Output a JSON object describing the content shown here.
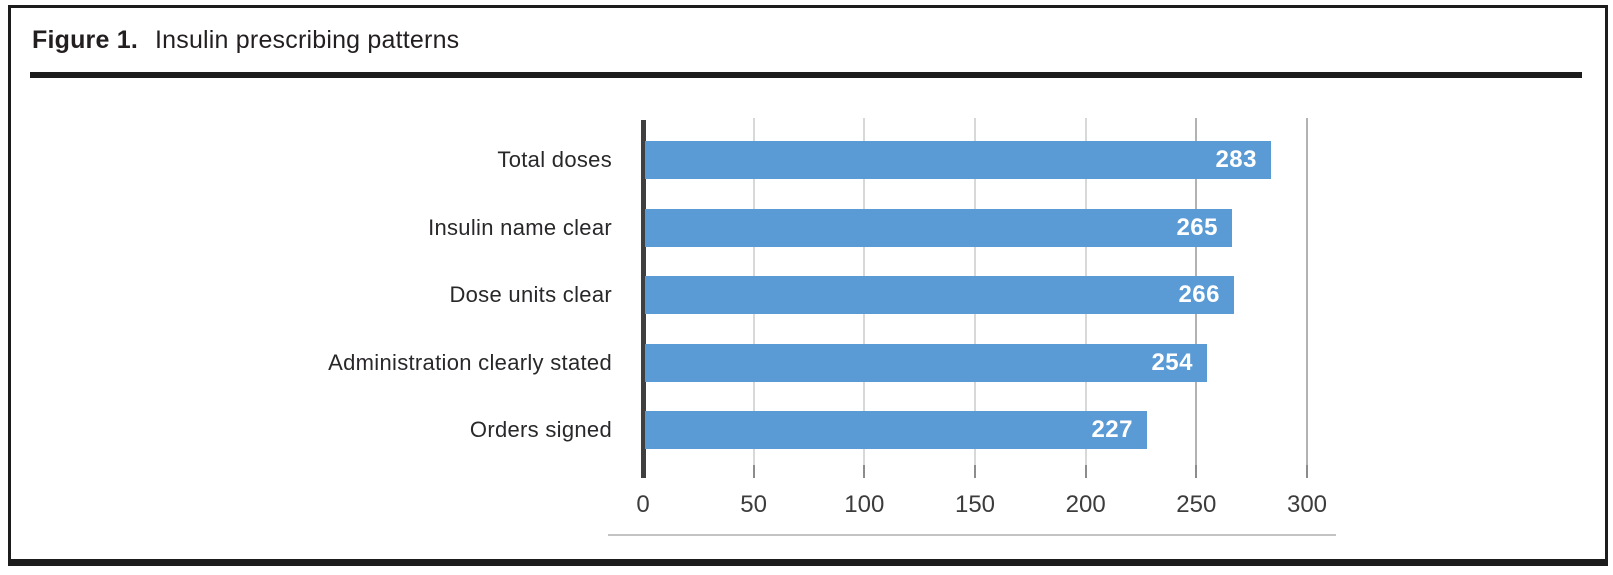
{
  "figure": {
    "label": "Figure 1.",
    "title": "Insulin prescribing patterns"
  },
  "chart_data": {
    "type": "bar",
    "orientation": "horizontal",
    "title": "Insulin prescribing patterns",
    "categories": [
      "Total doses",
      "Insulin name clear",
      "Dose units clear",
      "Administration clearly stated",
      "Orders signed"
    ],
    "values": [
      283,
      265,
      266,
      254,
      227
    ],
    "x_ticks": [
      0,
      50,
      100,
      150,
      200,
      250,
      300
    ],
    "xlim": [
      0,
      300
    ],
    "xlabel": "",
    "ylabel": "",
    "grid": true,
    "legend": false,
    "bar_color": "#5b9bd5",
    "value_label_color": "#ffffff",
    "axis_line_color": "#3f3f3f"
  }
}
